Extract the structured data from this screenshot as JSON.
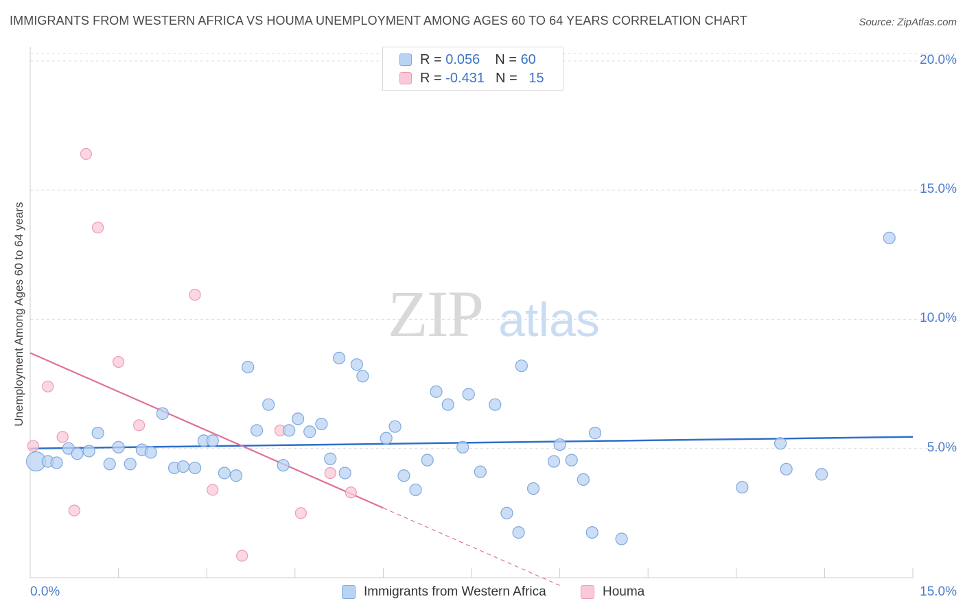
{
  "title": "IMMIGRANTS FROM WESTERN AFRICA VS HOUMA UNEMPLOYMENT AMONG AGES 60 TO 64 YEARS CORRELATION CHART",
  "source": "Source: ZipAtlas.com",
  "watermark": {
    "zip": "ZIP",
    "atlas": "atlas"
  },
  "colors": {
    "blue_fill": "#b9d3f3",
    "blue_stroke": "#7fa8de",
    "blue_line": "#2d6fc9",
    "pink_fill": "#f9c9d8",
    "pink_stroke": "#ee9ab4",
    "pink_line": "#e0709a",
    "axis_text": "#4a7cc7",
    "grid": "#dcdcdc"
  },
  "legend": {
    "rows": [
      {
        "r_label": "R =",
        "r_value": "0.056",
        "n_label": "N =",
        "n_value": "60"
      },
      {
        "r_label": "R =",
        "r_value": "-0.431",
        "n_label": "N =",
        "n_value": "15"
      }
    ]
  },
  "bottom_legend": [
    "Immigrants from Western Africa",
    "Houma"
  ],
  "chart_data": {
    "type": "scatter",
    "title": "IMMIGRANTS FROM WESTERN AFRICA VS HOUMA UNEMPLOYMENT AMONG AGES 60 TO 64 YEARS CORRELATION CHART",
    "xlabel": "",
    "ylabel": "Unemployment Among Ages 60 to 64 years",
    "xlim": [
      0,
      15
    ],
    "ylim": [
      0,
      20.5
    ],
    "x_tick_labels": [
      "0.0%",
      "15.0%"
    ],
    "y_ticks": [
      5,
      10,
      15,
      20
    ],
    "y_tick_labels": [
      "5.0%",
      "10.0%",
      "15.0%",
      "20.0%"
    ],
    "grid": true,
    "series": [
      {
        "name": "Immigrants from Western Africa",
        "R": 0.056,
        "N": 60,
        "trend": {
          "x": [
            0,
            15
          ],
          "y": [
            5.0,
            5.45
          ]
        },
        "points": [
          {
            "x": 0.1,
            "y": 4.5,
            "big": true
          },
          {
            "x": 0.3,
            "y": 4.5
          },
          {
            "x": 0.45,
            "y": 4.45
          },
          {
            "x": 0.65,
            "y": 5.0
          },
          {
            "x": 0.8,
            "y": 4.8
          },
          {
            "x": 1.0,
            "y": 4.9
          },
          {
            "x": 1.15,
            "y": 5.6
          },
          {
            "x": 1.35,
            "y": 4.4
          },
          {
            "x": 1.5,
            "y": 5.05
          },
          {
            "x": 1.7,
            "y": 4.4
          },
          {
            "x": 1.9,
            "y": 4.95
          },
          {
            "x": 2.05,
            "y": 4.85
          },
          {
            "x": 2.25,
            "y": 6.35
          },
          {
            "x": 2.45,
            "y": 4.25
          },
          {
            "x": 2.6,
            "y": 4.3
          },
          {
            "x": 2.8,
            "y": 4.25
          },
          {
            "x": 2.95,
            "y": 5.3
          },
          {
            "x": 3.1,
            "y": 5.3
          },
          {
            "x": 3.3,
            "y": 4.05
          },
          {
            "x": 3.5,
            "y": 3.95
          },
          {
            "x": 3.7,
            "y": 8.15
          },
          {
            "x": 3.85,
            "y": 5.7
          },
          {
            "x": 4.05,
            "y": 6.7
          },
          {
            "x": 4.3,
            "y": 4.35
          },
          {
            "x": 4.4,
            "y": 5.7
          },
          {
            "x": 4.55,
            "y": 6.15
          },
          {
            "x": 4.75,
            "y": 5.65
          },
          {
            "x": 4.95,
            "y": 5.95
          },
          {
            "x": 5.1,
            "y": 4.6
          },
          {
            "x": 5.25,
            "y": 8.5
          },
          {
            "x": 5.35,
            "y": 4.05
          },
          {
            "x": 5.55,
            "y": 8.25
          },
          {
            "x": 5.65,
            "y": 7.8
          },
          {
            "x": 6.05,
            "y": 5.4
          },
          {
            "x": 6.2,
            "y": 5.85
          },
          {
            "x": 6.35,
            "y": 3.95
          },
          {
            "x": 6.55,
            "y": 3.4
          },
          {
            "x": 6.75,
            "y": 4.55
          },
          {
            "x": 6.9,
            "y": 7.2
          },
          {
            "x": 7.1,
            "y": 6.7
          },
          {
            "x": 7.35,
            "y": 5.05
          },
          {
            "x": 7.45,
            "y": 7.1
          },
          {
            "x": 7.65,
            "y": 4.1
          },
          {
            "x": 7.9,
            "y": 6.7
          },
          {
            "x": 8.1,
            "y": 2.5
          },
          {
            "x": 8.3,
            "y": 1.75
          },
          {
            "x": 8.35,
            "y": 8.2
          },
          {
            "x": 8.55,
            "y": 3.45
          },
          {
            "x": 8.9,
            "y": 4.5
          },
          {
            "x": 9.0,
            "y": 5.15
          },
          {
            "x": 9.2,
            "y": 4.55
          },
          {
            "x": 9.4,
            "y": 3.8
          },
          {
            "x": 9.55,
            "y": 1.75
          },
          {
            "x": 9.6,
            "y": 5.6
          },
          {
            "x": 10.05,
            "y": 1.5
          },
          {
            "x": 12.1,
            "y": 3.5
          },
          {
            "x": 12.75,
            "y": 5.2
          },
          {
            "x": 12.85,
            "y": 4.2
          },
          {
            "x": 13.45,
            "y": 4.0
          },
          {
            "x": 14.6,
            "y": 13.15
          }
        ]
      },
      {
        "name": "Houma",
        "R": -0.431,
        "N": 15,
        "trend": {
          "x": [
            0,
            6
          ],
          "y": [
            8.7,
            2.7
          ]
        },
        "trend_dashed": {
          "x": [
            6,
            9.0
          ],
          "y": [
            2.7,
            -0.3
          ]
        },
        "points": [
          {
            "x": 0.05,
            "y": 5.1
          },
          {
            "x": 0.3,
            "y": 7.4
          },
          {
            "x": 0.55,
            "y": 5.45
          },
          {
            "x": 0.75,
            "y": 2.6
          },
          {
            "x": 0.95,
            "y": 16.4
          },
          {
            "x": 1.15,
            "y": 13.55
          },
          {
            "x": 1.5,
            "y": 8.35
          },
          {
            "x": 1.85,
            "y": 5.9
          },
          {
            "x": 2.8,
            "y": 10.95
          },
          {
            "x": 3.1,
            "y": 3.4
          },
          {
            "x": 3.6,
            "y": 0.85
          },
          {
            "x": 4.25,
            "y": 5.7
          },
          {
            "x": 4.6,
            "y": 2.5
          },
          {
            "x": 5.1,
            "y": 4.05
          },
          {
            "x": 5.45,
            "y": 3.3
          }
        ]
      }
    ]
  }
}
